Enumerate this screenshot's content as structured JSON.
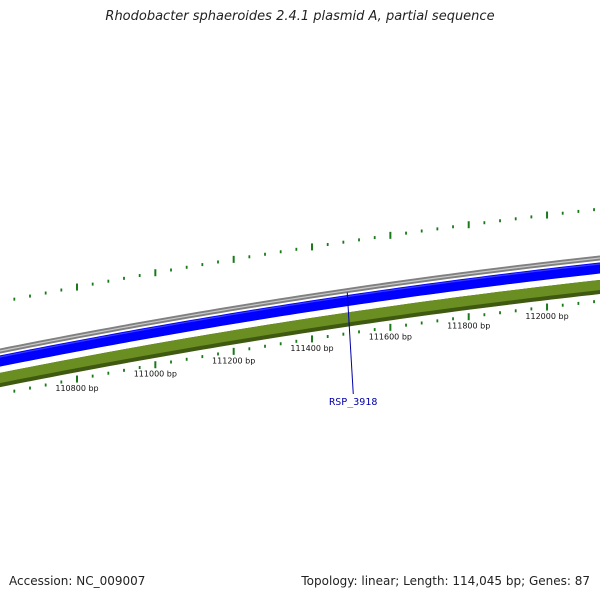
{
  "title": "Rhodobacter sphaeroides 2.4.1 plasmid A, partial sequence",
  "accession_text": "Accession: NC_009007",
  "summary_text": "Topology: linear; Length: 114,045 bp; Genes: 87",
  "colors": {
    "backbone": "#808080",
    "forward_track": "#0000ff",
    "reverse_track": "#6b8e23",
    "reverse_track_edge": "#3f5a10",
    "ticks": "#1a7a1a",
    "gene_label": "#0000aa"
  },
  "scale": {
    "labels": [
      {
        "bp": 110800,
        "text": "110800 bp"
      },
      {
        "bp": 111000,
        "text": "111000 bp"
      },
      {
        "bp": 111200,
        "text": "111200 bp"
      },
      {
        "bp": 111400,
        "text": "111400 bp"
      },
      {
        "bp": 111600,
        "text": "111600 bp"
      },
      {
        "bp": 111800,
        "text": "111800 bp"
      },
      {
        "bp": 112000,
        "text": "112000 bp"
      }
    ]
  },
  "genes": [
    {
      "locus": "RSP_3918",
      "bp": 111490
    }
  ]
}
